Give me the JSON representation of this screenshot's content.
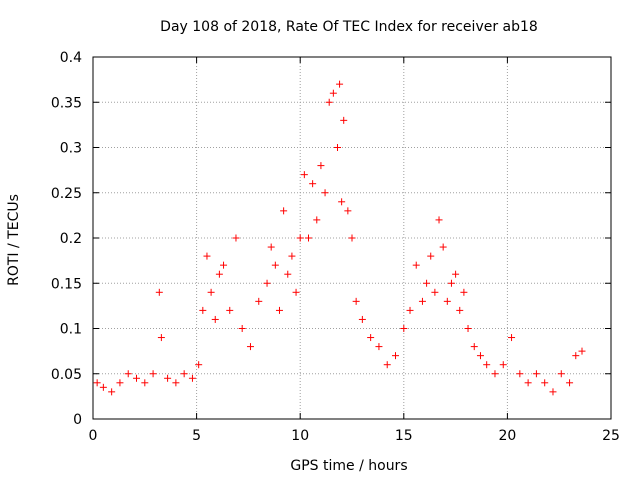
{
  "chart_data": {
    "type": "scatter",
    "title": "Day 108 of 2018, Rate Of TEC Index for receiver ab18",
    "xlabel": "GPS time / hours",
    "ylabel": "ROTI / TECUs",
    "xlim": [
      0,
      25
    ],
    "ylim": [
      0,
      0.4
    ],
    "xticks": [
      "0",
      "5",
      "10",
      "15",
      "20",
      "25"
    ],
    "yticks": [
      "0",
      "0.05",
      "0.1",
      "0.15",
      "0.2",
      "0.25",
      "0.3",
      "0.35",
      "0.4"
    ],
    "grid": true,
    "legend": "none",
    "marker": "+",
    "color": "#ff0000",
    "series": [
      {
        "x": [
          0.2,
          0.5,
          0.9,
          1.3,
          1.7,
          2.1,
          2.5,
          2.9,
          3.2,
          3.3,
          3.6,
          4.0,
          4.4,
          4.8,
          5.1,
          5.3,
          5.5,
          5.7,
          5.9,
          6.1,
          6.3,
          6.6,
          6.9,
          7.2,
          7.6,
          8.0,
          8.4,
          8.6,
          8.8,
          9.0,
          9.2,
          9.4,
          9.6,
          9.8,
          10.0,
          10.2,
          10.4,
          10.6,
          10.8,
          11.0,
          11.2,
          11.4,
          11.6,
          11.8,
          11.9,
          12.0,
          12.1,
          12.3,
          12.5,
          12.7,
          13.0,
          13.4,
          13.8,
          14.2,
          14.6,
          15.0,
          15.3,
          15.6,
          15.9,
          16.1,
          16.3,
          16.5,
          16.7,
          16.9,
          17.1,
          17.3,
          17.5,
          17.7,
          17.9,
          18.1,
          18.4,
          18.7,
          19.0,
          19.4,
          19.8,
          20.2,
          20.6,
          21.0,
          21.4,
          21.8,
          22.2,
          22.6,
          23.0,
          23.3,
          23.6
        ],
        "y": [
          0.04,
          0.035,
          0.03,
          0.04,
          0.05,
          0.045,
          0.04,
          0.05,
          0.14,
          0.09,
          0.045,
          0.04,
          0.05,
          0.045,
          0.06,
          0.12,
          0.18,
          0.14,
          0.11,
          0.16,
          0.17,
          0.12,
          0.2,
          0.1,
          0.08,
          0.13,
          0.15,
          0.19,
          0.17,
          0.12,
          0.23,
          0.16,
          0.18,
          0.14,
          0.2,
          0.27,
          0.2,
          0.26,
          0.22,
          0.28,
          0.25,
          0.35,
          0.36,
          0.3,
          0.37,
          0.24,
          0.33,
          0.23,
          0.2,
          0.13,
          0.11,
          0.09,
          0.08,
          0.06,
          0.07,
          0.1,
          0.12,
          0.17,
          0.13,
          0.15,
          0.18,
          0.14,
          0.22,
          0.19,
          0.13,
          0.15,
          0.16,
          0.12,
          0.14,
          0.1,
          0.08,
          0.07,
          0.06,
          0.05,
          0.06,
          0.09,
          0.05,
          0.04,
          0.05,
          0.04,
          0.03,
          0.05,
          0.04,
          0.07,
          0.075
        ]
      }
    ]
  }
}
